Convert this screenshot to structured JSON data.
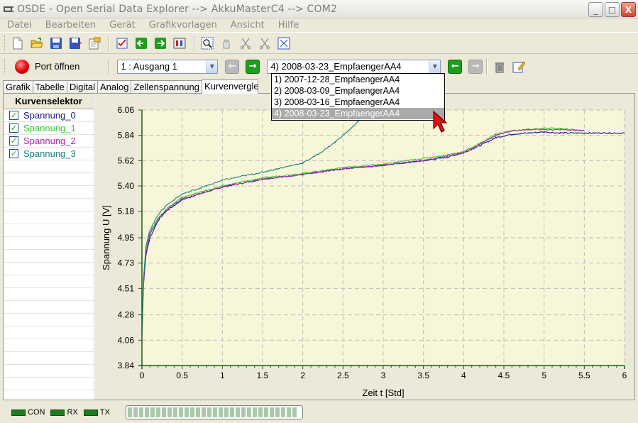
{
  "window": {
    "title": "OSDE - Open Serial Data Explorer   -->  AkkuMasterC4   -->  COM2",
    "minimize": "_",
    "maximize": "□",
    "close": "X"
  },
  "menu": [
    "Datei",
    "Bearbeiten",
    "Gerät",
    "Grafikvorlagen",
    "Ansicht",
    "Hilfe"
  ],
  "toolbar": {
    "icons": [
      "new-file-icon",
      "open-folder-icon",
      "save-icon",
      "save-as-icon",
      "export-icon",
      "checklist-icon",
      "arrow-left-icon",
      "arrow-right-icon",
      "settings-icon",
      "zoom-icon",
      "pan-icon",
      "cut-left-icon",
      "cut-right-icon",
      "fit-icon"
    ]
  },
  "port": {
    "label": "Port öffnen"
  },
  "channel_select": {
    "value": "1 : Ausgang 1"
  },
  "record_select": {
    "value": "4) 2008-03-23_EmpfaengerAA4",
    "options": [
      "1) 2007-12-28_EmpfaengerAA4",
      "2) 2008-03-09_EmpfaengerAA4",
      "3) 2008-03-16_EmpfaengerAA4",
      "4) 2008-03-23_EmpfaengerAA4"
    ]
  },
  "tabs": [
    "Grafik",
    "Tabelle",
    "Digital",
    "Analog",
    "Zellenspannung",
    "Kurvenvergle"
  ],
  "curve_selector": {
    "title": "Kurvenselektor",
    "items": [
      {
        "label": "Spannung_0",
        "color": "#1a1a8c",
        "checked": "✓"
      },
      {
        "label": "Spannung_1",
        "color": "#2ecc2e",
        "checked": "✓"
      },
      {
        "label": "Spannung_2",
        "color": "#b023b0",
        "checked": "✓"
      },
      {
        "label": "Spannung_3",
        "color": "#1a8080",
        "checked": "✓"
      }
    ]
  },
  "chart_data": {
    "type": "line",
    "xlabel": "Zeit  t  [Std]",
    "ylabel": "Spannung  U  [V]",
    "xlim": [
      0,
      6
    ],
    "ylim": [
      3.84,
      6.06
    ],
    "x_ticks": [
      "0",
      "0.5",
      "1",
      "1.5",
      "2",
      "2.5",
      "3",
      "3.5",
      "4",
      "4.5",
      "5",
      "5.5",
      "6"
    ],
    "y_ticks": [
      "3.84",
      "4.06",
      "4.28",
      "4.51",
      "4.73",
      "4.95",
      "5.18",
      "5.40",
      "5.62",
      "5.84",
      "6.06"
    ],
    "grid": true,
    "background": "#f8f6d8",
    "series": [
      {
        "name": "Spannung_0",
        "color": "#1a1a8c",
        "x": [
          0,
          0.02,
          0.05,
          0.1,
          0.2,
          0.3,
          0.5,
          0.8,
          1,
          1.5,
          2,
          2.5,
          3,
          3.5,
          3.8,
          4,
          4.2,
          4.4,
          4.6,
          4.8,
          5,
          5.2,
          5.5,
          5.8,
          6
        ],
        "y": [
          4.1,
          4.55,
          4.8,
          4.95,
          5.1,
          5.18,
          5.28,
          5.35,
          5.39,
          5.46,
          5.5,
          5.55,
          5.58,
          5.62,
          5.65,
          5.69,
          5.75,
          5.82,
          5.85,
          5.86,
          5.87,
          5.86,
          5.86,
          5.86,
          5.86
        ]
      },
      {
        "name": "Spannung_1",
        "color": "#2ecc2e",
        "x": [
          0,
          0.02,
          0.05,
          0.1,
          0.2,
          0.3,
          0.5,
          0.8,
          1,
          1.5,
          2,
          2.5,
          3,
          3.5,
          3.8,
          4,
          4.2,
          4.4,
          4.6,
          4.8,
          5,
          5.2,
          5.5
        ],
        "y": [
          4.15,
          4.6,
          4.85,
          5.0,
          5.12,
          5.2,
          5.3,
          5.36,
          5.4,
          5.47,
          5.51,
          5.56,
          5.59,
          5.64,
          5.67,
          5.7,
          5.77,
          5.85,
          5.88,
          5.89,
          5.9,
          5.9,
          5.88
        ]
      },
      {
        "name": "Spannung_2",
        "color": "#b023b0",
        "x": [
          0,
          0.02,
          0.05,
          0.1,
          0.2,
          0.3,
          0.5,
          0.8,
          1,
          1.5,
          2,
          2.5,
          3,
          3.5,
          3.8,
          4,
          4.2,
          4.4,
          4.6,
          4.8,
          5,
          5.2,
          5.5
        ],
        "y": [
          4.12,
          4.58,
          4.82,
          4.98,
          5.11,
          5.19,
          5.29,
          5.35,
          5.39,
          5.46,
          5.5,
          5.55,
          5.58,
          5.62,
          5.66,
          5.69,
          5.76,
          5.84,
          5.88,
          5.89,
          5.89,
          5.89,
          5.88
        ]
      },
      {
        "name": "Spannung_3",
        "color": "#1a8080",
        "x": [
          0,
          0.02,
          0.05,
          0.1,
          0.2,
          0.3,
          0.5,
          0.8,
          1,
          1.5,
          2,
          2.2,
          2.4,
          2.6,
          2.8
        ],
        "y": [
          4.1,
          4.6,
          4.88,
          5.02,
          5.15,
          5.23,
          5.33,
          5.4,
          5.45,
          5.52,
          5.6,
          5.68,
          5.78,
          5.9,
          6.04
        ]
      }
    ]
  },
  "status": {
    "leds": [
      "CON",
      "RX",
      "TX"
    ]
  }
}
